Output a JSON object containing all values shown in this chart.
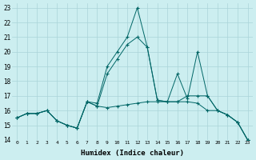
{
  "xlabel": "Humidex (Indice chaleur)",
  "bg_color": "#cceef0",
  "line_color": "#006666",
  "grid_color": "#aad4d8",
  "xlim": [
    -0.5,
    23.5
  ],
  "ylim": [
    14,
    23.3
  ],
  "yticks": [
    14,
    15,
    16,
    17,
    18,
    19,
    20,
    21,
    22,
    23
  ],
  "xticks": [
    0,
    1,
    2,
    3,
    4,
    5,
    6,
    7,
    8,
    9,
    10,
    11,
    12,
    13,
    14,
    15,
    16,
    17,
    18,
    19,
    20,
    21,
    22,
    23
  ],
  "series": [
    {
      "x": [
        0,
        1,
        2,
        3,
        4,
        5,
        6,
        7,
        8,
        9,
        10,
        11,
        12,
        13,
        14,
        15,
        16,
        17,
        18,
        19,
        20,
        21,
        22,
        23
      ],
      "y": [
        15.5,
        15.8,
        15.8,
        16.0,
        15.3,
        15.0,
        14.8,
        16.6,
        16.3,
        16.2,
        16.3,
        16.4,
        16.5,
        16.6,
        16.6,
        16.6,
        16.6,
        16.6,
        16.5,
        16.0,
        16.0,
        15.7,
        15.2,
        14.0
      ]
    },
    {
      "x": [
        0,
        1,
        2,
        3,
        4,
        5,
        6,
        7,
        8,
        9,
        10,
        11,
        12,
        13,
        14,
        15,
        16,
        17,
        18,
        19,
        20,
        21,
        22,
        23
      ],
      "y": [
        15.5,
        15.8,
        15.8,
        16.0,
        15.3,
        15.0,
        14.8,
        16.6,
        16.3,
        18.5,
        19.5,
        20.5,
        21.0,
        20.3,
        16.7,
        16.6,
        18.5,
        16.8,
        20.0,
        17.0,
        16.0,
        15.7,
        15.2,
        14.0
      ]
    },
    {
      "x": [
        0,
        1,
        2,
        3,
        4,
        5,
        6,
        7,
        8,
        9,
        10,
        11,
        12,
        13,
        14,
        15,
        16,
        17,
        18,
        19,
        20,
        21,
        22,
        23
      ],
      "y": [
        15.5,
        15.8,
        15.8,
        16.0,
        15.3,
        15.0,
        14.8,
        16.6,
        16.5,
        19.0,
        20.0,
        21.0,
        23.0,
        20.3,
        16.7,
        16.6,
        16.6,
        17.0,
        17.0,
        17.0,
        16.0,
        15.7,
        15.2,
        14.0
      ]
    }
  ]
}
